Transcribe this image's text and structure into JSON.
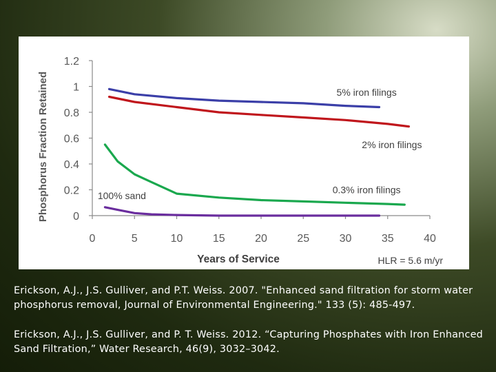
{
  "chart_data": {
    "type": "line",
    "ylabel": "Phosphorus Fraction Retained",
    "xlabel": "Years of Service",
    "annotation_hlr": "HLR = 5.6 m/yr",
    "xlim": [
      0,
      40
    ],
    "ylim": [
      0,
      1.2
    ],
    "xticks": [
      "0",
      "5",
      "10",
      "15",
      "20",
      "25",
      "30",
      "35",
      "40"
    ],
    "yticks": [
      "0",
      "0.2",
      "0.4",
      "0.6",
      "0.8",
      "1",
      "1.2"
    ],
    "grid": false,
    "series": [
      {
        "name": "5% iron filings",
        "color": "#3b3fa8",
        "x": [
          2,
          5,
          10,
          15,
          20,
          25,
          30,
          34
        ],
        "y": [
          0.98,
          0.94,
          0.91,
          0.89,
          0.88,
          0.87,
          0.85,
          0.84
        ]
      },
      {
        "name": "2% iron filings",
        "color": "#c0161c",
        "x": [
          2,
          5,
          10,
          15,
          20,
          25,
          30,
          35,
          37.5
        ],
        "y": [
          0.92,
          0.88,
          0.84,
          0.8,
          0.78,
          0.76,
          0.74,
          0.71,
          0.69
        ]
      },
      {
        "name": "0.3% iron filings",
        "color": "#1aa84e",
        "x": [
          1.5,
          3,
          5,
          7,
          10,
          15,
          20,
          25,
          30,
          35,
          37
        ],
        "y": [
          0.55,
          0.42,
          0.32,
          0.26,
          0.17,
          0.14,
          0.12,
          0.11,
          0.1,
          0.09,
          0.085
        ]
      },
      {
        "name": "100% sand",
        "color": "#6a2d9e",
        "x": [
          1.5,
          3,
          5,
          7,
          10,
          15,
          20,
          25,
          30,
          34
        ],
        "y": [
          0.065,
          0.045,
          0.02,
          0.01,
          0.005,
          0.0,
          0.0,
          0.0,
          0.0,
          0.0
        ]
      }
    ]
  },
  "citations": [
    "Erickson, A.J., J.S. Gulliver, and P.T. Weiss. 2007. \"Enhanced sand filtration for storm water phosphorus removal, Journal of Environmental Engineering.\" 133 (5): 485-497.",
    "Erickson, A.J., J.S. Gulliver, and P. T.  Weiss. 2012. “Capturing Phosphates with Iron Enhanced Sand Filtration,” Water Research, 46(9), 3032–3042."
  ]
}
